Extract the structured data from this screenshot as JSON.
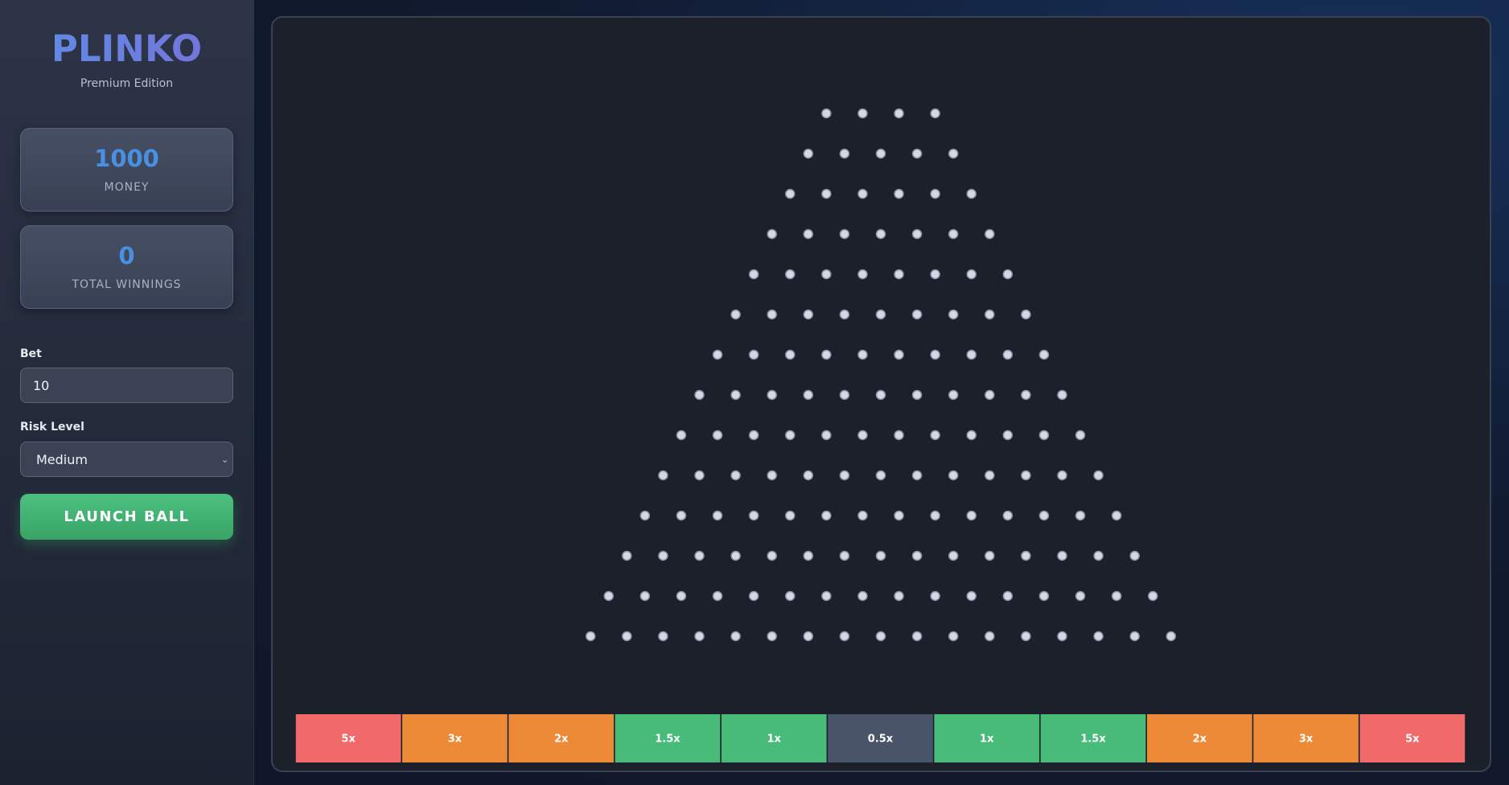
{
  "header": {
    "title": "PLINKO",
    "subtitle": "Premium Edition"
  },
  "stats": [
    {
      "value": "1000",
      "label": "MONEY"
    },
    {
      "value": "0",
      "label": "TOTAL WINNINGS"
    }
  ],
  "controls": {
    "bet_label": "Bet",
    "bet_value": "10",
    "risk_label": "Risk Level",
    "risk_value": "Medium",
    "button": "LAUNCH BALL"
  },
  "buckets": [
    {
      "label": "5x",
      "color": "#f06a6a"
    },
    {
      "label": "3x",
      "color": "#ec8a38"
    },
    {
      "label": "2x",
      "color": "#ec8a38"
    },
    {
      "label": "1.5x",
      "color": "#48bb78"
    },
    {
      "label": "1x",
      "color": "#48bb78"
    },
    {
      "label": "0.5x",
      "color": "#4a5468"
    },
    {
      "label": "1x",
      "color": "#48bb78"
    },
    {
      "label": "1.5x",
      "color": "#48bb78"
    },
    {
      "label": "2x",
      "color": "#ec8a38"
    },
    {
      "label": "3x",
      "color": "#ec8a38"
    },
    {
      "label": "5x",
      "color": "#f06a6a"
    }
  ]
}
